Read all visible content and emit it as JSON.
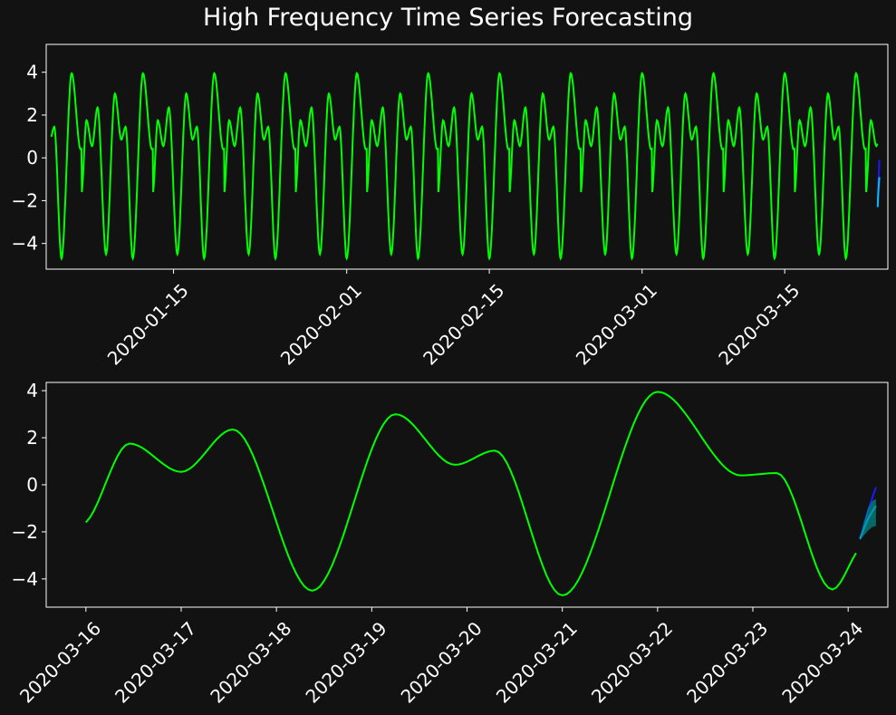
{
  "figure": {
    "title": "High Frequency Time Series Forecasting",
    "colors": {
      "background": "#121212",
      "axes_frame": "#ffffff",
      "text": "#ffffff",
      "history_line": "#00ff00",
      "forecast_line": "#00bfff",
      "actual_tail": "#1a1aff",
      "confidence_band": "#008b8b"
    }
  },
  "chart_data": [
    {
      "type": "line",
      "title": "",
      "xlabel": "",
      "ylabel": "",
      "x_type": "date",
      "xlim": [
        "2020-01-02T12:00",
        "2020-03-25T03:00"
      ],
      "ylim": [
        -5.2,
        5.3
      ],
      "x_ticks": [
        "2020-01-15",
        "2020-02-01",
        "2020-02-15",
        "2020-03-01",
        "2020-03-15"
      ],
      "y_ticks": [
        -4,
        -2,
        0,
        2,
        4
      ],
      "grid": false,
      "legend": "none",
      "series": [
        {
          "role": "history",
          "color": "#00ff00",
          "start": "2020-01-03T00:00",
          "end": "2020-03-24T02:00",
          "step_hours": 1,
          "values": "periodic wave (period 7 days), one cycle of daily values listed as week_profile",
          "week_profile": [
            {
              "x": "2020-03-16T00:00",
              "y": -1.6
            },
            {
              "x": "2020-03-16T11:00",
              "y": 1.75
            },
            {
              "x": "2020-03-17T00:00",
              "y": 0.55
            },
            {
              "x": "2020-03-17T13:00",
              "y": 2.35
            },
            {
              "x": "2020-03-18T09:00",
              "y": -4.5
            },
            {
              "x": "2020-03-19T06:00",
              "y": 3.0
            },
            {
              "x": "2020-03-19T21:00",
              "y": 0.85
            },
            {
              "x": "2020-03-20T07:00",
              "y": 1.45
            },
            {
              "x": "2020-03-21T00:00",
              "y": -4.7
            },
            {
              "x": "2020-03-22T00:00",
              "y": 3.95
            },
            {
              "x": "2020-03-22T21:00",
              "y": 0.4
            },
            {
              "x": "2020-03-23T06:00",
              "y": 0.5
            },
            {
              "x": "2020-03-23T20:00",
              "y": -4.45
            },
            {
              "x": "2020-03-24T02:00",
              "y": -2.9
            }
          ]
        },
        {
          "role": "actual",
          "color": "#1a1aff",
          "x": [
            "2020-03-24T03:00",
            "2020-03-24T04:00",
            "2020-03-24T05:00",
            "2020-03-24T06:00",
            "2020-03-24T07:00"
          ],
          "values": [
            -2.3,
            -1.7,
            -1.1,
            -0.6,
            -0.1
          ]
        },
        {
          "role": "forecast",
          "color": "#00bfff",
          "x": [
            "2020-03-24T03:00",
            "2020-03-24T04:00",
            "2020-03-24T05:00",
            "2020-03-24T06:00",
            "2020-03-24T07:00"
          ],
          "values": [
            -2.3,
            -1.85,
            -1.45,
            -1.15,
            -0.9
          ]
        }
      ]
    },
    {
      "type": "line",
      "title": "",
      "xlabel": "",
      "ylabel": "",
      "x_type": "date",
      "xlim": [
        "2020-03-15T14:00",
        "2020-03-24T10:00"
      ],
      "ylim": [
        -5.2,
        4.35
      ],
      "x_ticks": [
        "2020-03-16",
        "2020-03-17",
        "2020-03-18",
        "2020-03-19",
        "2020-03-20",
        "2020-03-21",
        "2020-03-22",
        "2020-03-23",
        "2020-03-24"
      ],
      "y_ticks": [
        -4,
        -2,
        0,
        2,
        4
      ],
      "grid": false,
      "legend": "none",
      "series": [
        {
          "role": "history",
          "color": "#00ff00",
          "points": [
            {
              "x": "2020-03-16T00:00",
              "y": -1.6
            },
            {
              "x": "2020-03-16T11:00",
              "y": 1.75
            },
            {
              "x": "2020-03-17T00:00",
              "y": 0.55
            },
            {
              "x": "2020-03-17T13:00",
              "y": 2.35
            },
            {
              "x": "2020-03-18T09:00",
              "y": -4.5
            },
            {
              "x": "2020-03-19T06:00",
              "y": 3.0
            },
            {
              "x": "2020-03-19T21:00",
              "y": 0.85
            },
            {
              "x": "2020-03-20T07:00",
              "y": 1.45
            },
            {
              "x": "2020-03-21T00:00",
              "y": -4.7
            },
            {
              "x": "2020-03-22T00:00",
              "y": 3.95
            },
            {
              "x": "2020-03-22T21:00",
              "y": 0.4
            },
            {
              "x": "2020-03-23T06:00",
              "y": 0.5
            },
            {
              "x": "2020-03-23T20:00",
              "y": -4.45
            },
            {
              "x": "2020-03-24T02:00",
              "y": -2.9
            }
          ]
        },
        {
          "role": "actual",
          "color": "#1a1aff",
          "x": [
            "2020-03-24T03:00",
            "2020-03-24T04:00",
            "2020-03-24T05:00",
            "2020-03-24T06:00",
            "2020-03-24T07:00"
          ],
          "values": [
            -2.3,
            -1.7,
            -1.1,
            -0.6,
            -0.1
          ]
        },
        {
          "role": "forecast",
          "color": "#00bfff",
          "x": [
            "2020-03-24T03:00",
            "2020-03-24T04:00",
            "2020-03-24T05:00",
            "2020-03-24T06:00",
            "2020-03-24T07:00"
          ],
          "values": [
            -2.3,
            -1.85,
            -1.45,
            -1.15,
            -0.9
          ]
        },
        {
          "role": "confidence_interval",
          "color": "#008b8b",
          "x": [
            "2020-03-24T03:00",
            "2020-03-24T04:00",
            "2020-03-24T05:00",
            "2020-03-24T06:00",
            "2020-03-24T07:00"
          ],
          "lower": [
            -2.35,
            -2.15,
            -1.95,
            -1.8,
            -1.75
          ],
          "upper": [
            -2.25,
            -1.55,
            -1.0,
            -0.7,
            -0.6
          ]
        }
      ]
    }
  ]
}
